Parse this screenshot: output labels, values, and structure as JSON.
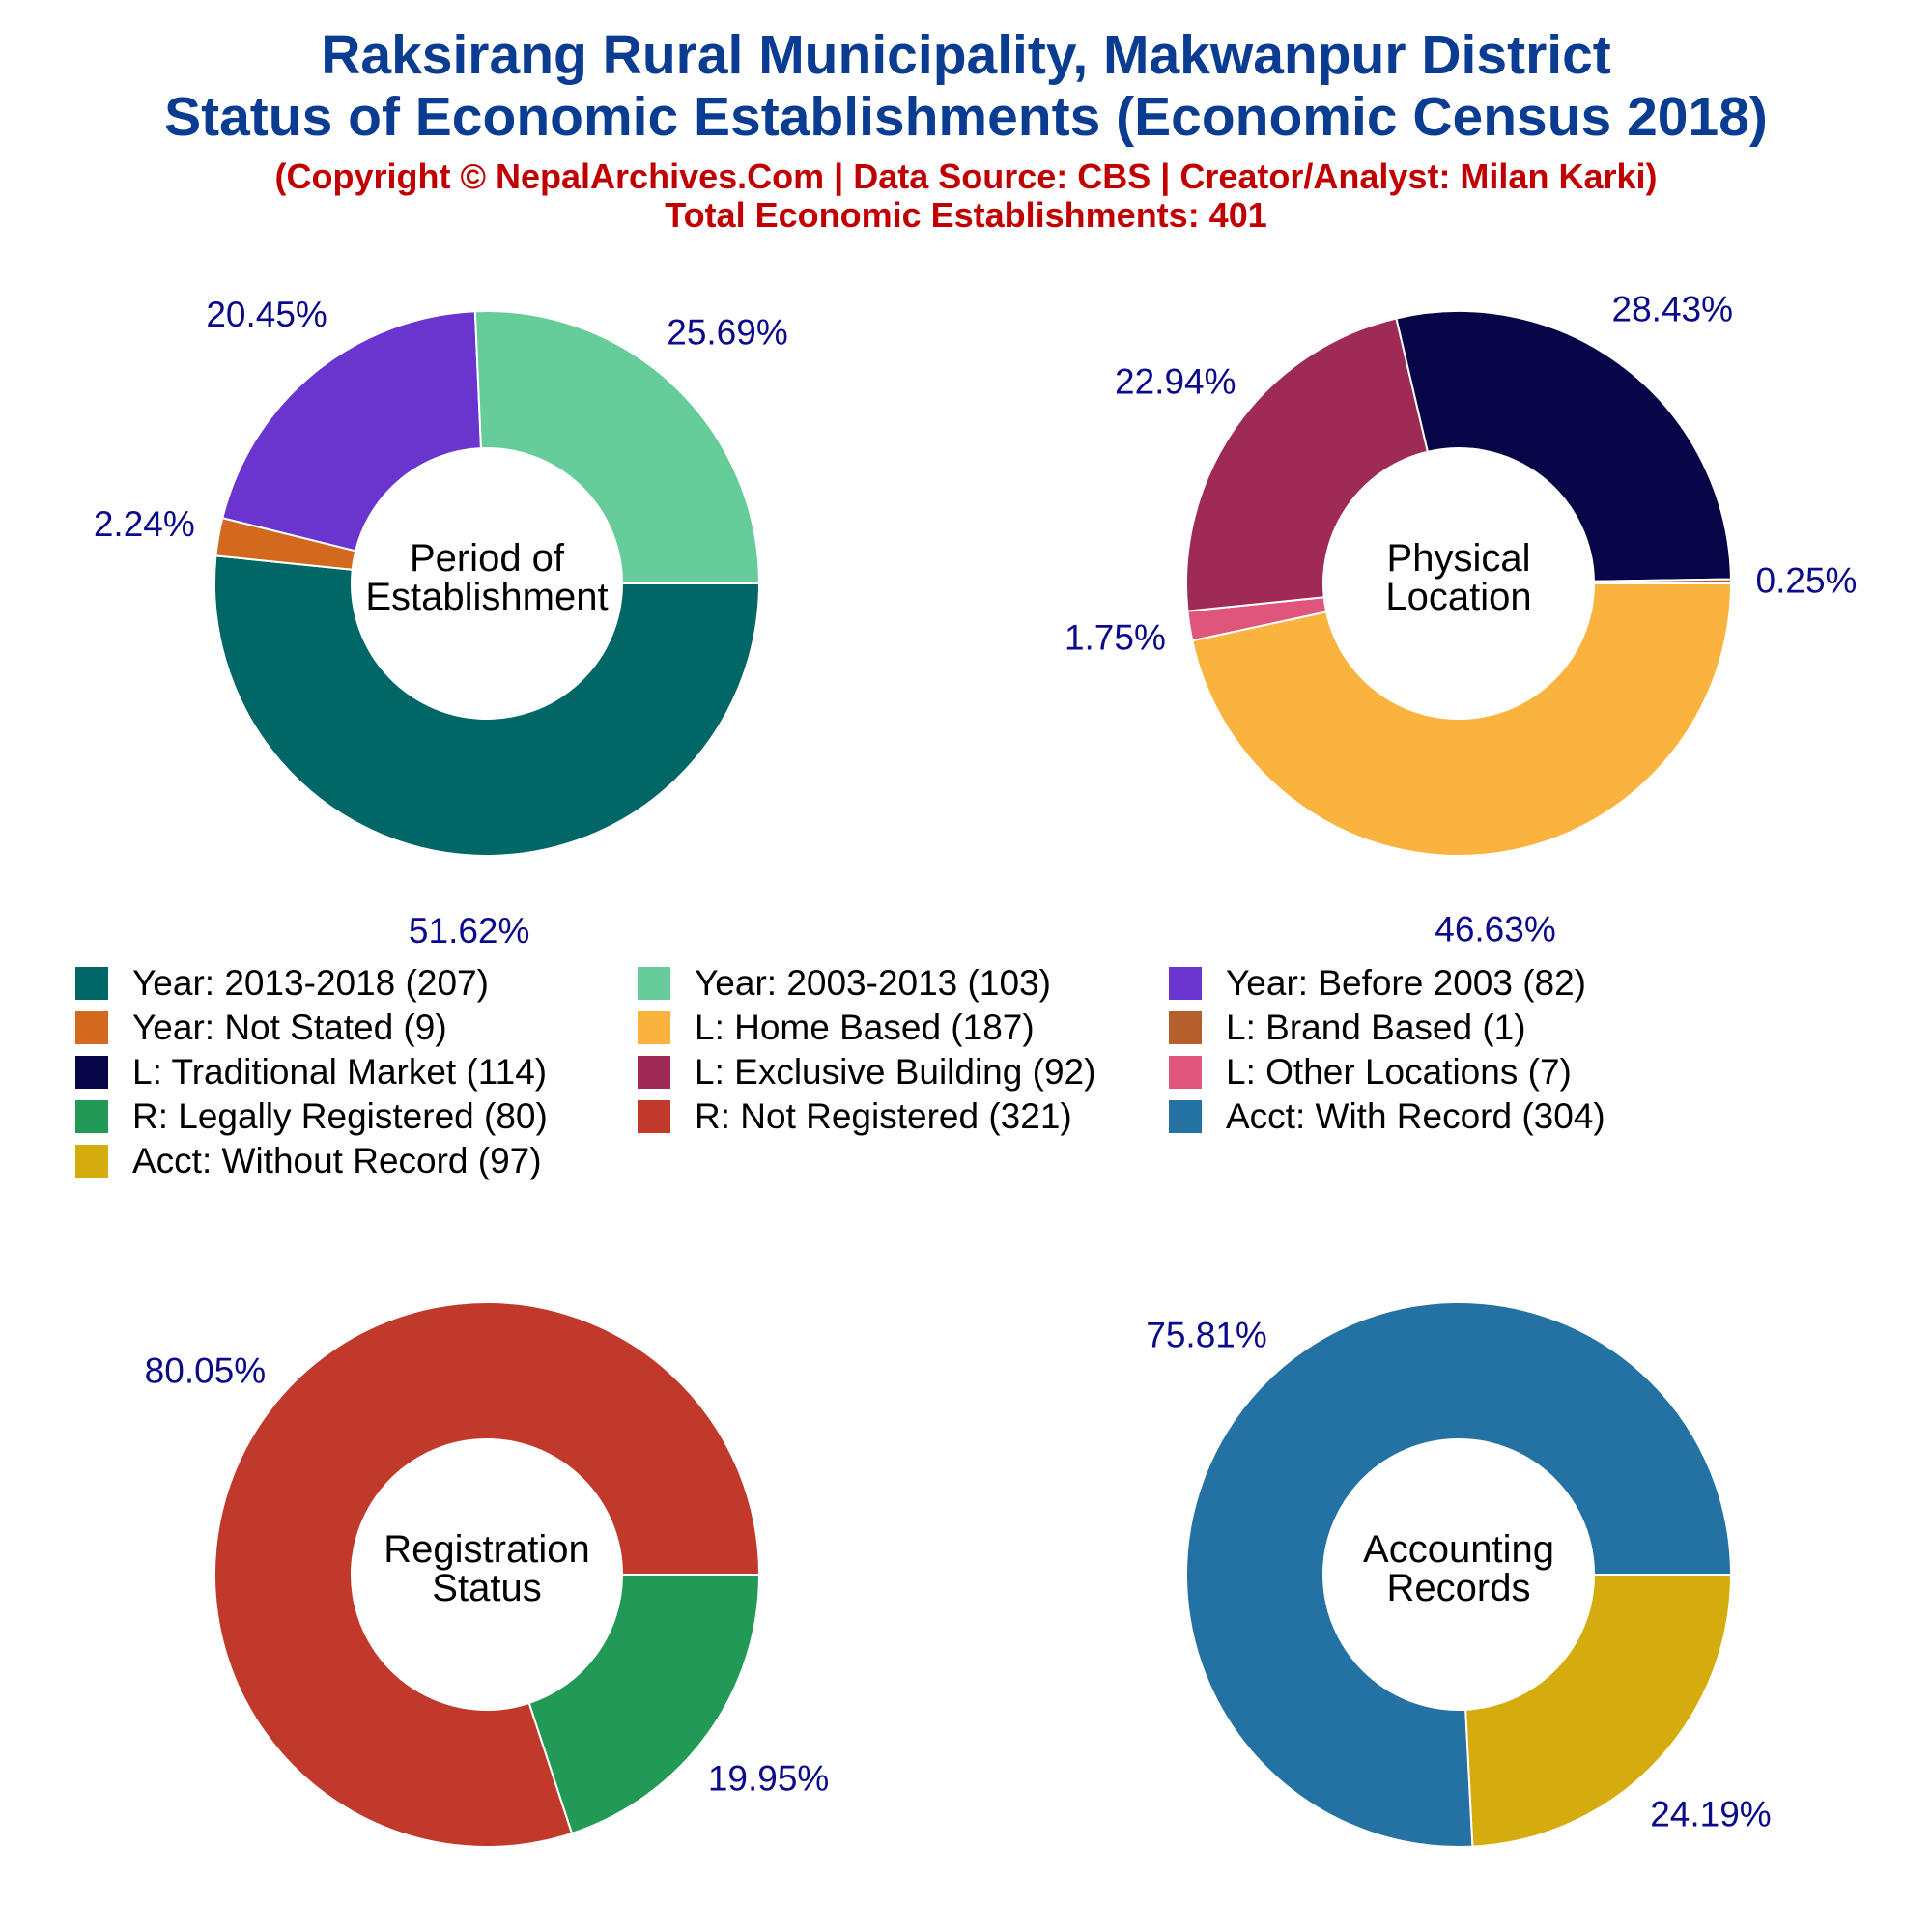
{
  "header": {
    "title_line1": "Raksirang Rural Municipality, Makwanpur District",
    "title_line2": "Status of Economic Establishments (Economic Census 2018)",
    "copyright": "(Copyright © NepalArchives.Com | Data Source: CBS | Creator/Analyst: Milan Karki)",
    "total": "Total Economic Establishments: 401"
  },
  "chart_data": [
    {
      "type": "pie",
      "title": "Period of Establishment",
      "center_label": [
        "Period of",
        "Establishment"
      ],
      "slices": [
        {
          "label": "Year: 2013-2018",
          "value": 207,
          "percent_label": "51.62%",
          "color": "#006666"
        },
        {
          "label": "Year: Not Stated",
          "value": 9,
          "percent_label": "2.24%",
          "color": "#d2691e"
        },
        {
          "label": "Year: Before 2003",
          "value": 82,
          "percent_label": "20.45%",
          "color": "#6a35cf"
        },
        {
          "label": "Year: 2003-2013",
          "value": 103,
          "percent_label": "25.69%",
          "color": "#66cc99"
        }
      ]
    },
    {
      "type": "pie",
      "title": "Physical Location",
      "center_label": [
        "Physical",
        "Location"
      ],
      "slices": [
        {
          "label": "L: Home Based",
          "value": 187,
          "percent_label": "46.63%",
          "color": "#fbb33f"
        },
        {
          "label": "L: Other Locations",
          "value": 7,
          "percent_label": "1.75%",
          "color": "#e0567a"
        },
        {
          "label": "L: Exclusive Building",
          "value": 92,
          "percent_label": "22.94%",
          "color": "#9e2a55"
        },
        {
          "label": "L: Traditional Market",
          "value": 114,
          "percent_label": "28.43%",
          "color": "#050547"
        },
        {
          "label": "L: Brand Based",
          "value": 1,
          "percent_label": "0.25%",
          "color": "#b5602c"
        }
      ]
    },
    {
      "type": "pie",
      "title": "Registration Status",
      "center_label": [
        "Registration",
        "Status"
      ],
      "slices": [
        {
          "label": "R: Legally Registered",
          "value": 80,
          "percent_label": "19.95%",
          "color": "#229955"
        },
        {
          "label": "R: Not Registered",
          "value": 321,
          "percent_label": "80.05%",
          "color": "#c0392b"
        }
      ]
    },
    {
      "type": "pie",
      "title": "Accounting Records",
      "center_label": [
        "Accounting",
        "Records"
      ],
      "slices": [
        {
          "label": "Acct: Without Record",
          "value": 97,
          "percent_label": "24.19%",
          "color": "#d4ac0d"
        },
        {
          "label": "Acct: With Record",
          "value": 304,
          "percent_label": "75.81%",
          "color": "#2471a3"
        }
      ]
    }
  ],
  "legend": [
    {
      "label": "Year: 2013-2018 (207)",
      "color": "#006666"
    },
    {
      "label": "Year: 2003-2013 (103)",
      "color": "#66cc99"
    },
    {
      "label": "Year: Before 2003 (82)",
      "color": "#6a35cf"
    },
    {
      "label": "Year: Not Stated (9)",
      "color": "#d2691e"
    },
    {
      "label": "L: Home Based (187)",
      "color": "#fbb33f"
    },
    {
      "label": "L: Brand Based (1)",
      "color": "#b5602c"
    },
    {
      "label": "L: Traditional Market (114)",
      "color": "#050547"
    },
    {
      "label": "L: Exclusive Building (92)",
      "color": "#9e2a55"
    },
    {
      "label": "L: Other Locations (7)",
      "color": "#e0567a"
    },
    {
      "label": "R: Legally Registered (80)",
      "color": "#229955"
    },
    {
      "label": "R: Not Registered (321)",
      "color": "#c0392b"
    },
    {
      "label": "Acct: With Record (304)",
      "color": "#2471a3"
    },
    {
      "label": "Acct: Without Record (97)",
      "color": "#d4ac0d"
    }
  ]
}
